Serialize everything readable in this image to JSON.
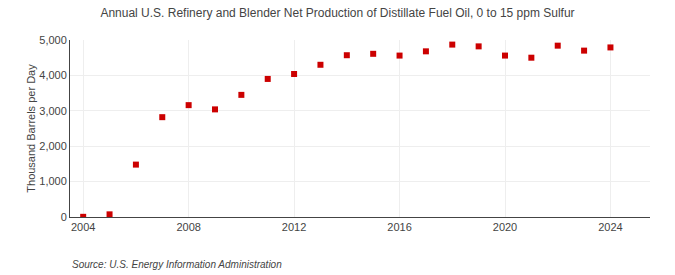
{
  "chart_data": {
    "type": "scatter",
    "title": "Annual U.S. Refinery and Blender Net Production of Distillate Fuel Oil, 0 to 15 ppm Sulfur",
    "ylabel": "Thousand Barrels per Day",
    "annotations": [
      "Source: U.S. Energy Information Administration"
    ],
    "x": [
      2004,
      2005,
      2006,
      2007,
      2008,
      2009,
      2010,
      2011,
      2012,
      2013,
      2014,
      2015,
      2016,
      2017,
      2018,
      2019,
      2020,
      2021,
      2022,
      2023,
      2024
    ],
    "values": [
      5,
      75,
      1480,
      2820,
      3160,
      3040,
      3450,
      3900,
      4040,
      4300,
      4570,
      4610,
      4560,
      4680,
      4870,
      4820,
      4560,
      4500,
      4840,
      4700,
      4790
    ],
    "color": "#cc0000",
    "marker": "square",
    "xlim": [
      2003.5,
      2025.5
    ],
    "xticks": [
      2004,
      2008,
      2012,
      2016,
      2020,
      2024
    ],
    "ylim": [
      0,
      5000
    ],
    "yticks": [
      0,
      {
        "value": 1000,
        "label": "1,000"
      },
      {
        "value": 2000,
        "label": "2,000"
      },
      {
        "value": 3000,
        "label": "3,000"
      },
      {
        "value": 4000,
        "label": "4,000"
      },
      {
        "value": 5000,
        "label": "5,000"
      }
    ],
    "grid": true
  }
}
